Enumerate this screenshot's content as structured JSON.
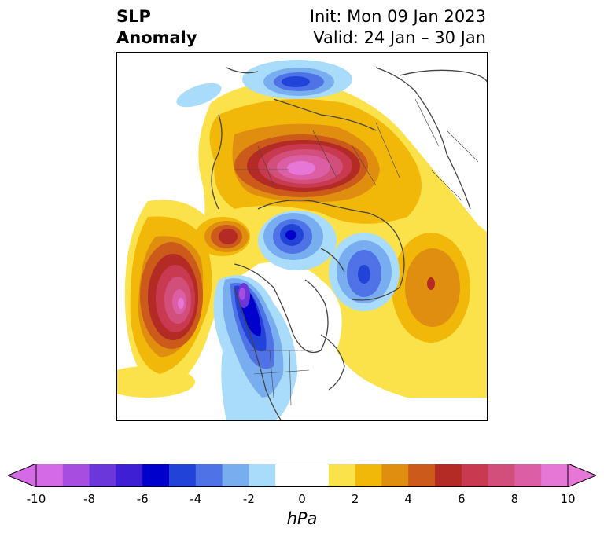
{
  "header": {
    "title_line1": "SLP",
    "title_line2": "Anomaly",
    "init_text": "Init: Mon 09 Jan 2023",
    "valid_text": "Valid: 24 Jan – 30 Jan"
  },
  "colorbar": {
    "unit": "hPa",
    "ticks": [
      "-10",
      "-8",
      "-6",
      "-4",
      "-2",
      "0",
      "2",
      "4",
      "6",
      "8",
      "10"
    ],
    "colors": [
      "#d56ae6",
      "#a74de0",
      "#6b37da",
      "#3f1fd3",
      "#0000cc",
      "#2243d8",
      "#4f72e6",
      "#78aef0",
      "#a9dcfb",
      "#ffffff",
      "#ffffff",
      "#fbe24a",
      "#f1b80a",
      "#e08e0f",
      "#cc5a1a",
      "#b42a24",
      "#c9394f",
      "#d24e7b",
      "#dc5ea4",
      "#e677d6"
    ]
  },
  "map": {
    "projection": "north-polar-stereographic",
    "field": "sea level pressure anomaly"
  }
}
